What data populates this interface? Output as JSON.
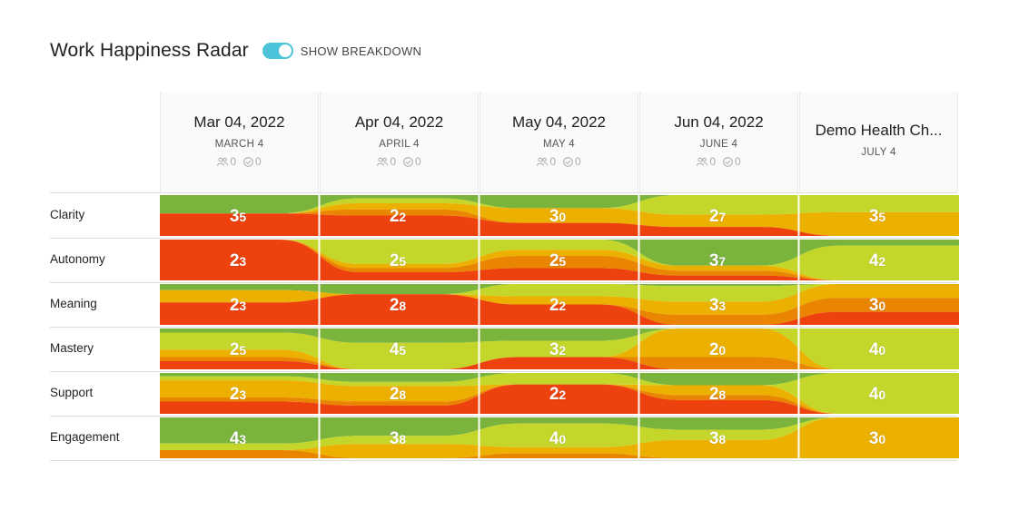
{
  "header": {
    "title": "Work Happiness Radar",
    "toggle_label": "SHOW BREAKDOWN",
    "toggle_on": true
  },
  "colors": {
    "green": "#7ab43c",
    "lime": "#c5d62b",
    "yellow": "#ecb000",
    "orange": "#e98500",
    "red": "#ee420e",
    "toggle": "#4dc3d9"
  },
  "columns": [
    {
      "date": "Mar 04, 2022",
      "sub": "MARCH 4",
      "participants": "0",
      "responses": "0"
    },
    {
      "date": "Apr 04, 2022",
      "sub": "APRIL 4",
      "participants": "0",
      "responses": "0"
    },
    {
      "date": "May 04, 2022",
      "sub": "MAY 4",
      "participants": "0",
      "responses": "0"
    },
    {
      "date": "Jun 04, 2022",
      "sub": "JUNE 4",
      "participants": "0",
      "responses": "0"
    },
    {
      "date": "Demo Health Ch...",
      "sub": "JULY 4"
    }
  ],
  "chart_data": {
    "type": "heatmap",
    "title": "Work Happiness Radar",
    "categories": [
      "MARCH 4",
      "APRIL 4",
      "MAY 4",
      "JUNE 4",
      "JULY 4"
    ],
    "series": [
      {
        "name": "Clarity",
        "values": [
          3.5,
          2.2,
          3.0,
          2.7,
          3.5
        ]
      },
      {
        "name": "Autonomy",
        "values": [
          2.3,
          2.5,
          2.5,
          3.7,
          4.2
        ]
      },
      {
        "name": "Meaning",
        "values": [
          2.3,
          2.8,
          2.2,
          3.3,
          3.0
        ]
      },
      {
        "name": "Mastery",
        "values": [
          2.5,
          4.5,
          3.2,
          2.0,
          4.0
        ]
      },
      {
        "name": "Support",
        "values": [
          2.3,
          2.8,
          2.2,
          2.8,
          4.0
        ]
      },
      {
        "name": "Engagement",
        "values": [
          4.3,
          3.8,
          4.0,
          3.8,
          3.0
        ]
      }
    ],
    "breakdown_order": [
      "green",
      "lime",
      "yellow",
      "orange",
      "red"
    ],
    "breakdown": [
      [
        [
          0.45,
          0,
          0,
          0,
          0.55
        ],
        [
          0.08,
          0.12,
          0.15,
          0.15,
          0.5
        ],
        [
          0.32,
          0,
          0.36,
          0,
          0.32
        ],
        [
          0,
          0.48,
          0.3,
          0,
          0.22
        ],
        [
          0,
          0.42,
          0.58,
          0,
          0
        ]
      ],
      [
        [
          0,
          0,
          0,
          0,
          1
        ],
        [
          0,
          0.6,
          0.1,
          0.1,
          0.2
        ],
        [
          0,
          0.25,
          0.15,
          0.3,
          0.3
        ],
        [
          0.64,
          0,
          0.12,
          0.12,
          0.12
        ],
        [
          0.15,
          0.85,
          0,
          0,
          0
        ]
      ],
      [
        [
          0.15,
          0,
          0.3,
          0,
          0.55
        ],
        [
          0.25,
          0,
          0,
          0,
          0.75
        ],
        [
          0,
          0.3,
          0.2,
          0,
          0.5
        ],
        [
          0.05,
          0.38,
          0.32,
          0.25,
          0
        ],
        [
          0,
          0,
          0.34,
          0.34,
          0.32
        ]
      ],
      [
        [
          0.1,
          0.42,
          0.18,
          0.1,
          0.2
        ],
        [
          0.35,
          0.65,
          0,
          0,
          0
        ],
        [
          0.3,
          0.4,
          0,
          0,
          0.3
        ],
        [
          0,
          0,
          0.7,
          0.3,
          0
        ],
        [
          0,
          1,
          0,
          0,
          0
        ]
      ],
      [
        [
          0.08,
          0.1,
          0.42,
          0.1,
          0.3
        ],
        [
          0.22,
          0.1,
          0.38,
          0.1,
          0.2
        ],
        [
          0,
          0.28,
          0,
          0,
          0.72
        ],
        [
          0.3,
          0,
          0.24,
          0.12,
          0.34
        ],
        [
          0,
          1,
          0,
          0,
          0
        ]
      ],
      [
        [
          0.64,
          0.16,
          0,
          0.2,
          0
        ],
        [
          0.45,
          0.2,
          0.35,
          0,
          0
        ],
        [
          0.15,
          0.58,
          0.15,
          0.12,
          0
        ],
        [
          0.3,
          0.25,
          0.45,
          0,
          0
        ],
        [
          0,
          0,
          1,
          0,
          0
        ]
      ]
    ]
  }
}
